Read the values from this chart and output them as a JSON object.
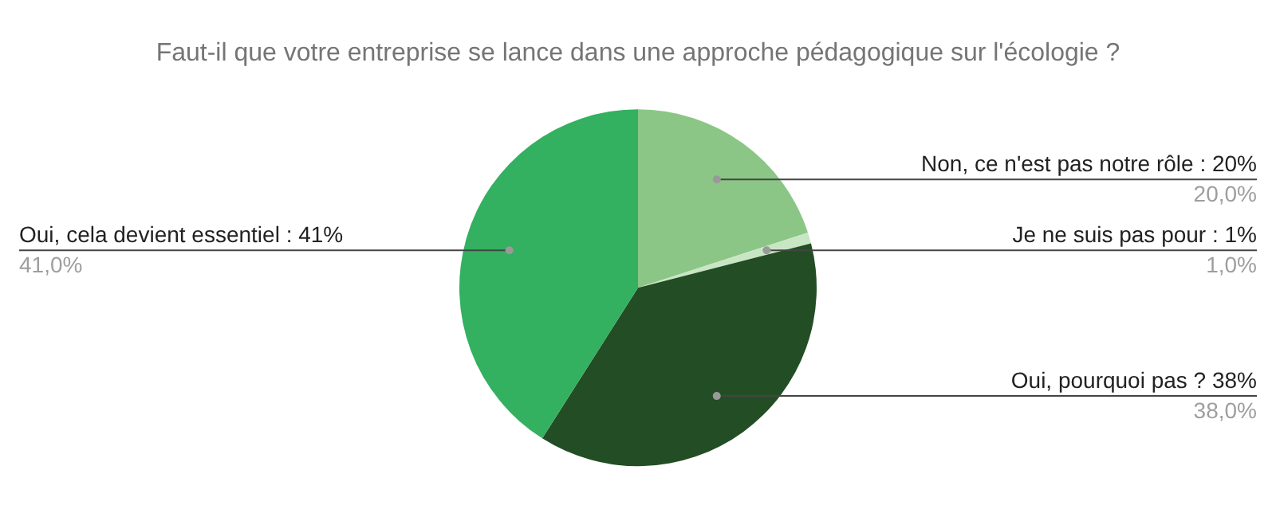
{
  "chart_data": {
    "type": "pie",
    "title": "Faut-il que votre entreprise se lance dans une approche pédagogique sur l'écologie ?",
    "categories": [
      "Non, ce n'est pas notre rôle : 20%",
      "Je ne suis pas pour : 1%",
      "Oui, pourquoi pas ? 38%",
      "Oui, cela devient essentiel : 41%"
    ],
    "values": [
      20,
      1,
      38,
      41
    ],
    "value_labels": [
      "20,0%",
      "1,0%",
      "38,0%",
      "41,0%"
    ],
    "colors": [
      "#8bc686",
      "#c8e6c4",
      "#234d24",
      "#33b060"
    ],
    "legend": false
  }
}
